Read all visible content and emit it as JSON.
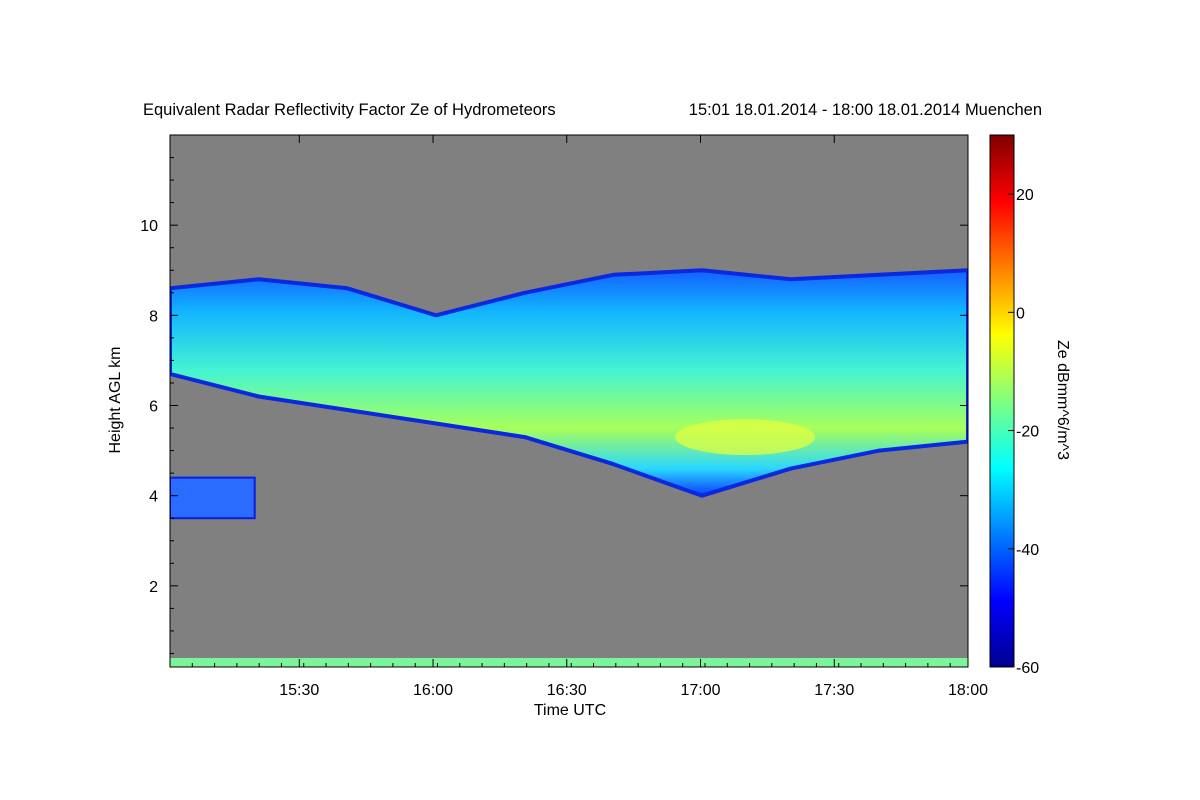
{
  "chart_data": {
    "type": "heatmap",
    "title": "Equivalent Radar Reflectivity Factor Ze of Hydrometeors",
    "subtitle": "15:01 18.01.2014 - 18:00 18.01.2014 Muenchen",
    "xlabel": "Time UTC",
    "ylabel": "Height AGL km",
    "colorbar_label": "Ze dBmm^6/m^3",
    "xlim": [
      "15:01",
      "18:00"
    ],
    "x_ticks": [
      "15:30",
      "16:00",
      "16:30",
      "17:00",
      "17:30",
      "18:00"
    ],
    "ylim": [
      0.2,
      12
    ],
    "y_ticks": [
      "2",
      "4",
      "6",
      "8",
      "10"
    ],
    "colorbar_range": [
      -60,
      30
    ],
    "colorbar_ticks": [
      "20",
      "0",
      "-20",
      "-40",
      "-60"
    ],
    "colormap": "jet",
    "no_data_color": "#808080",
    "features": [
      {
        "feature": "main cloud layer",
        "time_start": "15:01",
        "time_end": "18:00",
        "top_km": [
          8.6,
          8.8,
          8.6,
          8.0,
          8.5,
          8.9,
          9.0,
          8.8,
          8.9,
          9.0
        ],
        "base_km": [
          6.7,
          6.2,
          5.9,
          5.6,
          5.3,
          4.7,
          4.0,
          4.6,
          5.0,
          5.2
        ]
      },
      {
        "feature": "reflectivity maximum",
        "time": "17:10",
        "height_km": 5.3,
        "ze_dbz": -8
      },
      {
        "feature": "low cloud patch",
        "time_start": "15:01",
        "time_end": "15:20",
        "height_km": [
          3.5,
          4.4
        ]
      },
      {
        "feature": "near-surface clutter",
        "time_start": "15:01",
        "time_end": "18:00",
        "height_km": [
          0.2,
          0.4
        ]
      }
    ]
  }
}
